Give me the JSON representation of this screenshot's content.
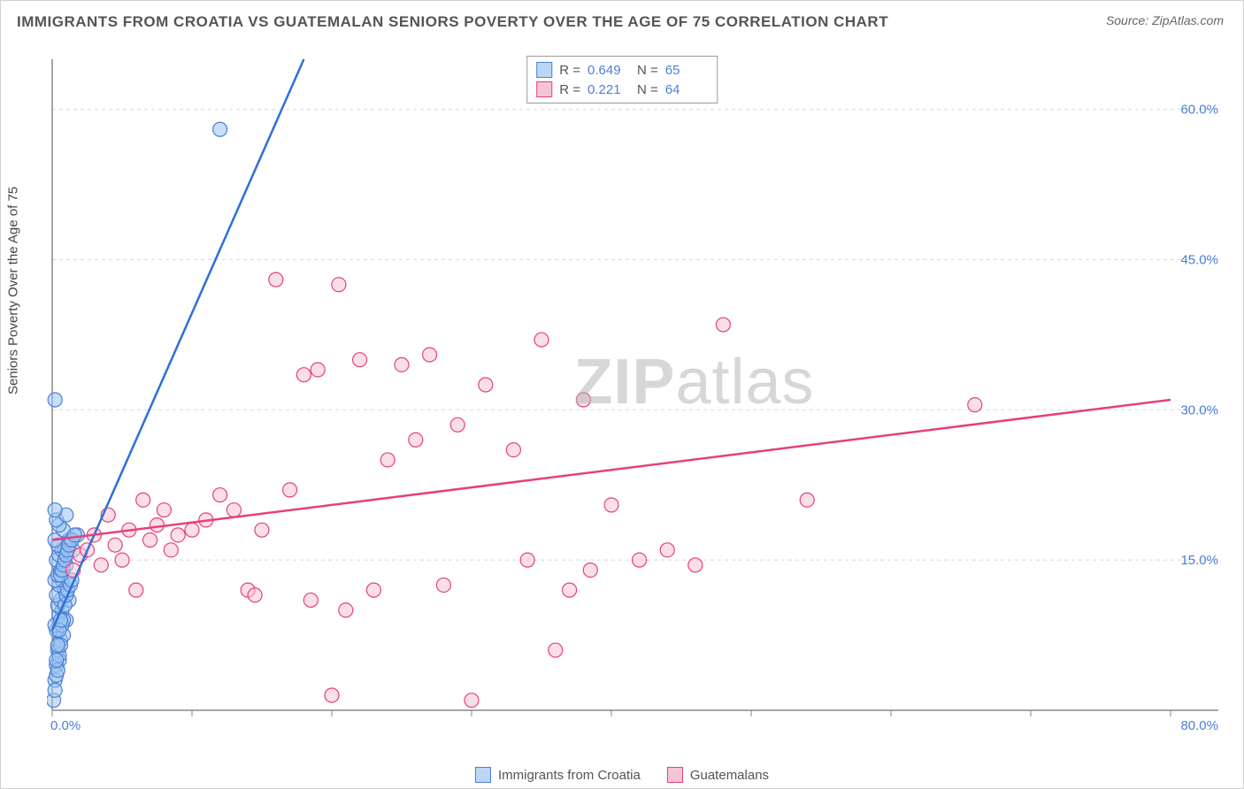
{
  "title": "IMMIGRANTS FROM CROATIA VS GUATEMALAN SENIORS POVERTY OVER THE AGE OF 75 CORRELATION CHART",
  "source_label": "Source: ",
  "source_value": "ZipAtlas.com",
  "y_axis_label": "Seniors Poverty Over the Age of 75",
  "watermark_a": "ZIP",
  "watermark_b": "atlas",
  "chart": {
    "type": "scatter",
    "xlim": [
      0,
      80
    ],
    "ylim": [
      0,
      65
    ],
    "x_ticks": [
      0,
      10,
      20,
      30,
      40,
      50,
      60,
      70,
      80
    ],
    "x_tick_labels": {
      "0": "0.0%",
      "80": "80.0%"
    },
    "y_gridlines": [
      15,
      30,
      45,
      60
    ],
    "y_tick_labels": {
      "15": "15.0%",
      "30": "30.0%",
      "45": "45.0%",
      "60": "60.0%"
    },
    "background_color": "#ffffff",
    "grid_color": "#d8d8d8",
    "axis_color": "#888888",
    "marker_radius": 8,
    "series": [
      {
        "name": "Immigrants from Croatia",
        "color_fill": "#9cc5f0",
        "color_stroke": "#4a7fd8",
        "R": "0.649",
        "N": "65",
        "trend_line": {
          "x1": 0,
          "y1": 8,
          "x2": 18,
          "y2": 65
        },
        "points": [
          [
            0.1,
            1.0
          ],
          [
            0.2,
            3.0
          ],
          [
            0.3,
            4.5
          ],
          [
            0.5,
            5.0
          ],
          [
            0.4,
            6.0
          ],
          [
            0.6,
            7.0
          ],
          [
            0.8,
            7.5
          ],
          [
            0.3,
            8.0
          ],
          [
            0.2,
            8.5
          ],
          [
            1.0,
            9.0
          ],
          [
            0.5,
            9.5
          ],
          [
            0.7,
            10.0
          ],
          [
            0.4,
            10.5
          ],
          [
            0.6,
            11.0
          ],
          [
            1.2,
            11.0
          ],
          [
            0.3,
            11.5
          ],
          [
            0.9,
            12.0
          ],
          [
            0.5,
            12.5
          ],
          [
            0.7,
            13.0
          ],
          [
            0.2,
            13.0
          ],
          [
            0.4,
            13.5
          ],
          [
            0.8,
            14.0
          ],
          [
            0.6,
            14.0
          ],
          [
            1.0,
            14.5
          ],
          [
            0.3,
            15.0
          ],
          [
            0.5,
            15.5
          ],
          [
            0.9,
            16.0
          ],
          [
            0.7,
            16.0
          ],
          [
            1.5,
            16.0
          ],
          [
            0.4,
            16.5
          ],
          [
            0.2,
            17.0
          ],
          [
            1.2,
            17.0
          ],
          [
            1.8,
            17.5
          ],
          [
            0.8,
            18.0
          ],
          [
            0.5,
            18.5
          ],
          [
            0.3,
            19.0
          ],
          [
            1.0,
            19.5
          ],
          [
            0.2,
            20.0
          ],
          [
            0.2,
            31.0
          ],
          [
            12.0,
            58.0
          ]
        ],
        "points_extra_dense": [
          [
            0.2,
            2.0
          ],
          [
            0.3,
            3.5
          ],
          [
            0.4,
            4.0
          ],
          [
            0.5,
            5.5
          ],
          [
            0.6,
            6.5
          ],
          [
            0.7,
            8.5
          ],
          [
            0.8,
            9.0
          ],
          [
            0.9,
            10.5
          ],
          [
            1.0,
            11.5
          ],
          [
            1.1,
            12.0
          ],
          [
            1.3,
            12.5
          ],
          [
            1.4,
            13.0
          ],
          [
            0.6,
            13.5
          ],
          [
            0.7,
            14.0
          ],
          [
            0.8,
            14.5
          ],
          [
            0.9,
            15.0
          ],
          [
            1.0,
            15.5
          ],
          [
            1.1,
            16.0
          ],
          [
            1.2,
            16.5
          ],
          [
            1.4,
            17.0
          ],
          [
            1.6,
            17.5
          ],
          [
            0.3,
            5.0
          ],
          [
            0.4,
            6.5
          ],
          [
            0.5,
            8.0
          ],
          [
            0.6,
            9.0
          ]
        ]
      },
      {
        "name": "Guatemalans",
        "color_fill": "#f7c4d4",
        "color_stroke": "#e6407a",
        "R": "0.221",
        "N": "64",
        "trend_line": {
          "x1": 0,
          "y1": 17,
          "x2": 80,
          "y2": 31
        },
        "points": [
          [
            1.5,
            14.0
          ],
          [
            2.0,
            15.5
          ],
          [
            2.5,
            16.0
          ],
          [
            3.0,
            17.5
          ],
          [
            3.5,
            14.5
          ],
          [
            4.0,
            19.5
          ],
          [
            4.5,
            16.5
          ],
          [
            5.0,
            15.0
          ],
          [
            5.5,
            18.0
          ],
          [
            6.0,
            12.0
          ],
          [
            6.5,
            21.0
          ],
          [
            7.0,
            17.0
          ],
          [
            7.5,
            18.5
          ],
          [
            8.0,
            20.0
          ],
          [
            8.5,
            16.0
          ],
          [
            9.0,
            17.5
          ],
          [
            10.0,
            18.0
          ],
          [
            11.0,
            19.0
          ],
          [
            12.0,
            21.5
          ],
          [
            13.0,
            20.0
          ],
          [
            14.0,
            12.0
          ],
          [
            14.5,
            11.5
          ],
          [
            15.0,
            18.0
          ],
          [
            16.0,
            43.0
          ],
          [
            17.0,
            22.0
          ],
          [
            18.0,
            33.5
          ],
          [
            18.5,
            11.0
          ],
          [
            19.0,
            34.0
          ],
          [
            20.0,
            1.5
          ],
          [
            20.5,
            42.5
          ],
          [
            21.0,
            10.0
          ],
          [
            22.0,
            35.0
          ],
          [
            23.0,
            12.0
          ],
          [
            24.0,
            25.0
          ],
          [
            25.0,
            34.5
          ],
          [
            26.0,
            27.0
          ],
          [
            27.0,
            35.5
          ],
          [
            28.0,
            12.5
          ],
          [
            29.0,
            28.5
          ],
          [
            30.0,
            1.0
          ],
          [
            31.0,
            32.5
          ],
          [
            33.0,
            26.0
          ],
          [
            34.0,
            15.0
          ],
          [
            35.0,
            37.0
          ],
          [
            36.0,
            6.0
          ],
          [
            37.0,
            12.0
          ],
          [
            38.0,
            31.0
          ],
          [
            38.5,
            14.0
          ],
          [
            40.0,
            20.5
          ],
          [
            42.0,
            15.0
          ],
          [
            44.0,
            16.0
          ],
          [
            46.0,
            14.5
          ],
          [
            48.0,
            38.5
          ],
          [
            54.0,
            21.0
          ],
          [
            66.0,
            30.5
          ]
        ]
      }
    ]
  },
  "legend_stats_labels": {
    "R": "R =",
    "N": "N ="
  },
  "bottom_legend": {
    "s1": "Immigrants from Croatia",
    "s2": "Guatemalans"
  }
}
